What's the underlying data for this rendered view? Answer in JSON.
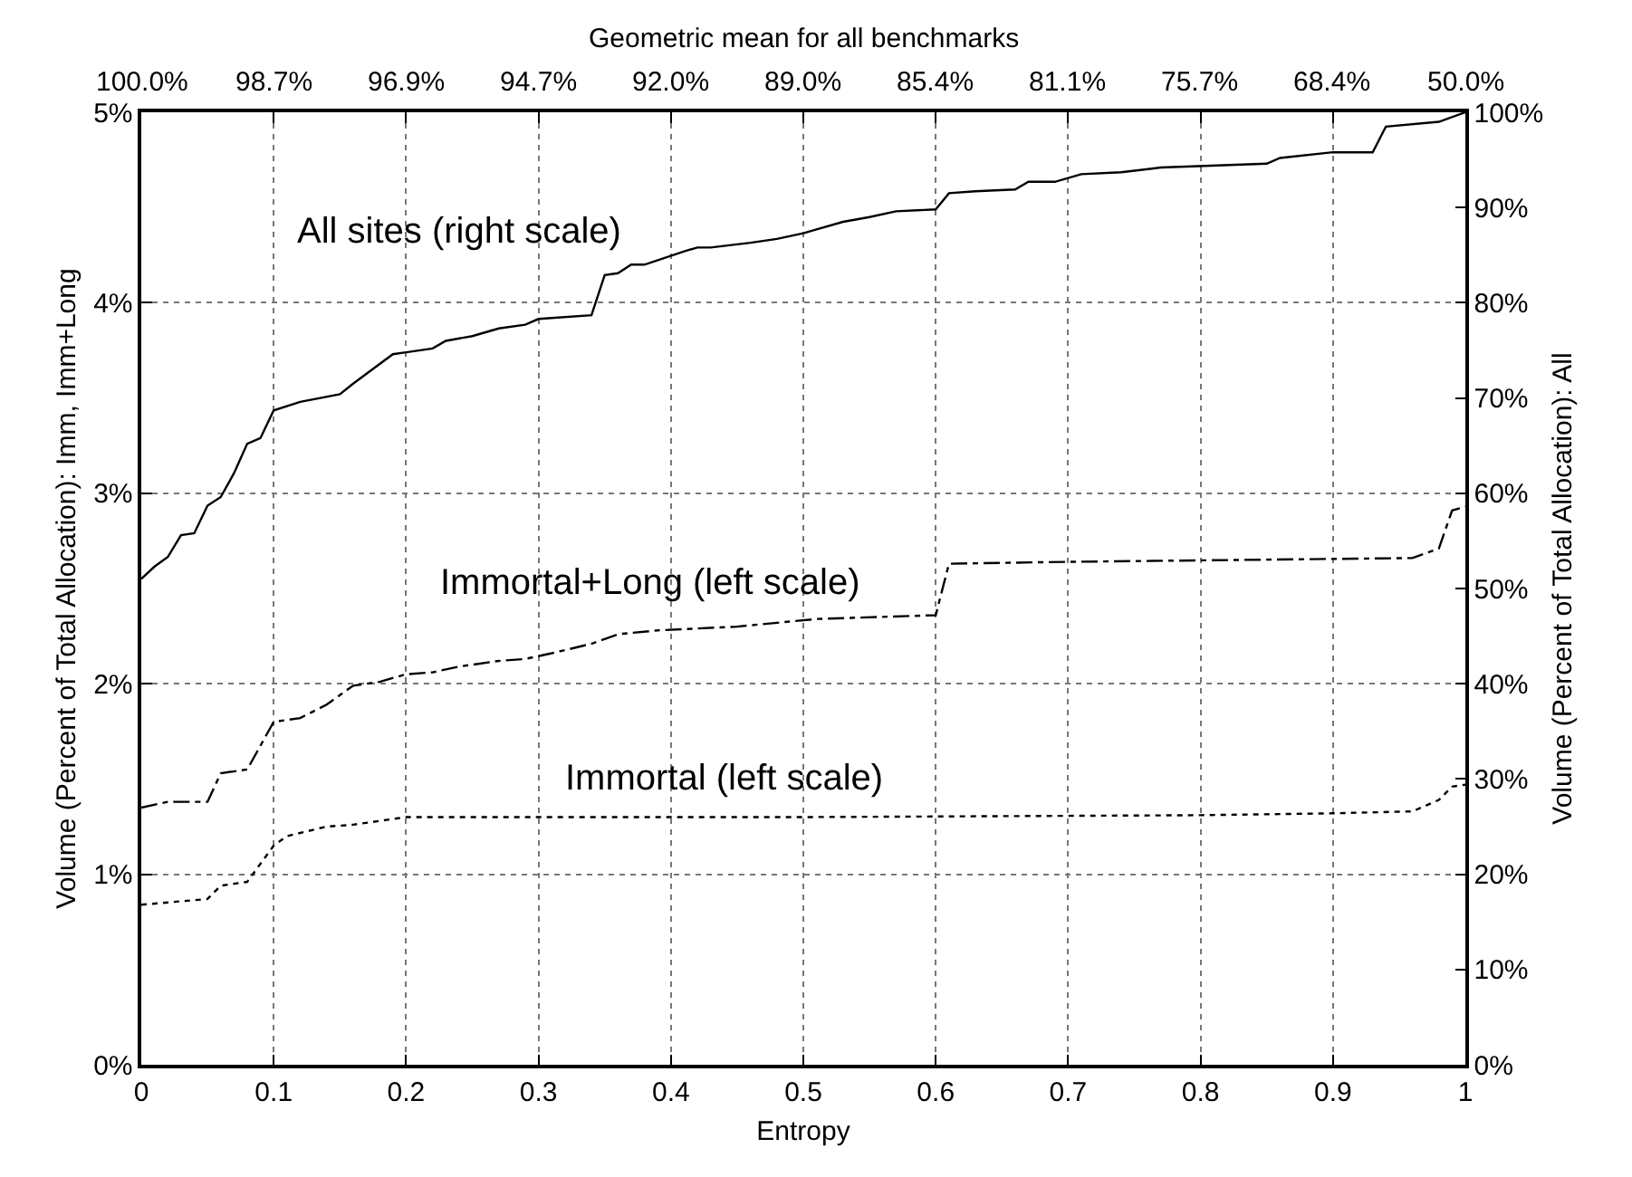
{
  "chart_data": {
    "type": "line",
    "xlabel": "Entropy",
    "ylabel": "Volume (Percent of Total Allocation): Imm, Imm+Long",
    "y2label": "Volume (Percent of Total Allocation): All",
    "x2label": "Geometric mean for all benchmarks",
    "xlim": [
      0,
      1
    ],
    "xticks": [
      0,
      0.1,
      0.2,
      0.3,
      0.4,
      0.5,
      0.6,
      0.7,
      0.8,
      0.9,
      1
    ],
    "ylim": [
      0,
      5
    ],
    "yticks": [
      {
        "value": 0,
        "label": "0%"
      },
      {
        "value": 1,
        "label": "1%"
      },
      {
        "value": 2,
        "label": "2%"
      },
      {
        "value": 3,
        "label": "3%"
      },
      {
        "value": 4,
        "label": "4%"
      },
      {
        "value": 5,
        "label": "5%"
      }
    ],
    "y2lim": [
      0,
      100
    ],
    "y2ticks": [
      {
        "value": 0,
        "label": "0%"
      },
      {
        "value": 10,
        "label": "10%"
      },
      {
        "value": 20,
        "label": "20%"
      },
      {
        "value": 30,
        "label": "30%"
      },
      {
        "value": 40,
        "label": "40%"
      },
      {
        "value": 50,
        "label": "50%"
      },
      {
        "value": 60,
        "label": "60%"
      },
      {
        "value": 70,
        "label": "70%"
      },
      {
        "value": 80,
        "label": "80%"
      },
      {
        "value": 90,
        "label": "90%"
      },
      {
        "value": 100,
        "label": "100%"
      }
    ],
    "grid": true,
    "marker": "none",
    "series": [
      {
        "color": "#000000",
        "axis": "y2",
        "line_style": "solid",
        "x": [
          0,
          0.01,
          0.02,
          0.03,
          0.04,
          0.05,
          0.06,
          0.07,
          0.08,
          0.09,
          0.1,
          0.12,
          0.15,
          0.16,
          0.19,
          0.2,
          0.22,
          0.23,
          0.25,
          0.27,
          0.29,
          0.3,
          0.34,
          0.35,
          0.36,
          0.37,
          0.38,
          0.41,
          0.42,
          0.43,
          0.46,
          0.48,
          0.5,
          0.51,
          0.53,
          0.55,
          0.57,
          0.6,
          0.61,
          0.63,
          0.66,
          0.67,
          0.69,
          0.71,
          0.74,
          0.77,
          0.85,
          0.86,
          0.9,
          0.93,
          0.94,
          0.98,
          1
        ],
        "values": [
          51,
          52.3,
          53.3,
          55.6,
          55.8,
          58.7,
          59.6,
          62.1,
          65.2,
          65.8,
          68.7,
          69.6,
          70.4,
          71.5,
          74.6,
          74.8,
          75.2,
          76,
          76.5,
          77.3,
          77.7,
          78.3,
          78.7,
          82.9,
          83.1,
          84,
          84,
          85.4,
          85.8,
          85.8,
          86.3,
          86.7,
          87.3,
          87.7,
          88.5,
          89,
          89.6,
          89.8,
          91.5,
          91.7,
          91.9,
          92.7,
          92.7,
          93.5,
          93.7,
          94.2,
          94.6,
          95.2,
          95.8,
          95.8,
          98.5,
          99,
          100
        ]
      },
      {
        "color": "#000000",
        "line_style": "dashdot",
        "x": [
          0,
          0.02,
          0.05,
          0.06,
          0.08,
          0.1,
          0.12,
          0.14,
          0.16,
          0.18,
          0.2,
          0.22,
          0.24,
          0.27,
          0.29,
          0.31,
          0.34,
          0.36,
          0.39,
          0.45,
          0.48,
          0.51,
          0.6,
          0.61,
          0.7,
          0.96,
          0.98,
          0.99,
          1
        ],
        "values": [
          1.35,
          1.38,
          1.38,
          1.53,
          1.55,
          1.8,
          1.82,
          1.89,
          1.99,
          2.01,
          2.05,
          2.06,
          2.09,
          2.12,
          2.13,
          2.16,
          2.21,
          2.26,
          2.28,
          2.3,
          2.32,
          2.34,
          2.36,
          2.63,
          2.64,
          2.66,
          2.71,
          2.91,
          2.93
        ]
      },
      {
        "color": "#000000",
        "line_style": "dotted",
        "x": [
          0,
          0.05,
          0.06,
          0.08,
          0.1,
          0.11,
          0.14,
          0.16,
          0.2,
          0.5,
          0.8,
          0.9,
          0.96,
          0.98,
          0.99,
          1
        ],
        "values": [
          0.84,
          0.87,
          0.94,
          0.96,
          1.15,
          1.2,
          1.25,
          1.26,
          1.3,
          1.3,
          1.31,
          1.32,
          1.33,
          1.39,
          1.46,
          1.47
        ]
      }
    ],
    "annotations": [
      "All sites (right scale)",
      "Immortal+Long (left scale)",
      "Immortal (left scale)",
      "100.0%",
      "98.7%",
      "96.9%",
      "94.7%",
      "92.0%",
      "89.0%",
      "85.4%",
      "81.1%",
      "75.7%",
      "68.4%",
      "50.0%"
    ]
  }
}
